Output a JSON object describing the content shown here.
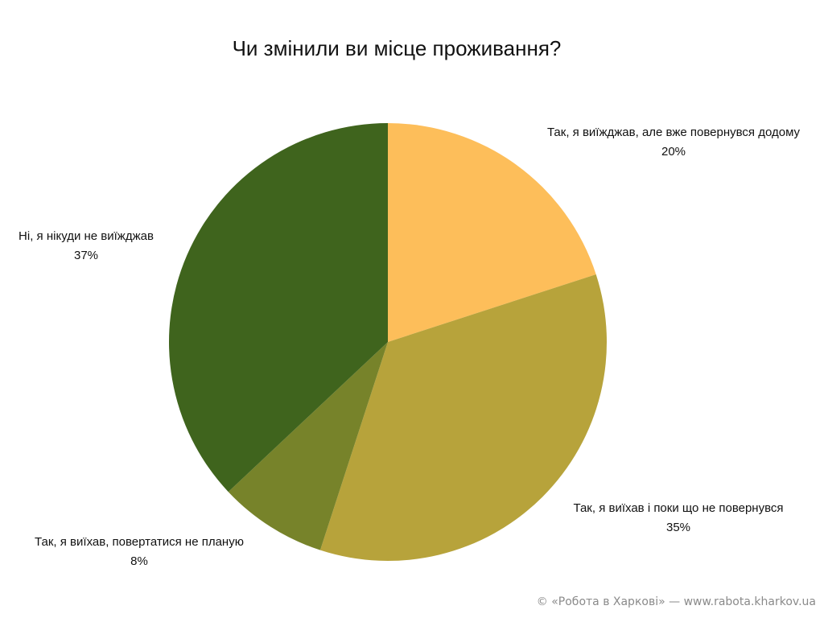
{
  "chart_data": {
    "type": "pie",
    "title": "Чи змінили ви місце проживання?",
    "categories": [
      "Так, я виїжджав, але вже повернувся додому",
      "Так, я виїхав і поки що не повернувся",
      "Так, я виїхав, повертатися не планую",
      "Ні, я нікуди не виїжджав"
    ],
    "values": [
      20,
      35,
      8,
      37
    ],
    "value_labels": [
      "20%",
      "35%",
      "8%",
      "37%"
    ],
    "colors": [
      "#fdbe5a",
      "#b7a33b",
      "#77832a",
      "#3f641d"
    ],
    "start_angle": "top",
    "direction": "clockwise",
    "legend": "none"
  },
  "footer": {
    "credit": "© «Робота в Харкові» — www.rabota.kharkov.ua"
  }
}
